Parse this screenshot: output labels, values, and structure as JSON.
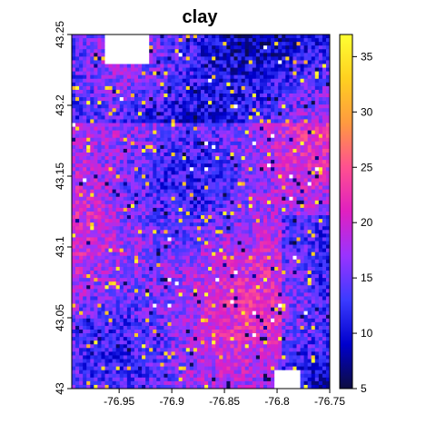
{
  "title": "clay",
  "map": {
    "extent": {
      "x_min": -76.995,
      "x_max": -76.75,
      "y_min": 43.0,
      "y_max": 43.25
    },
    "x_ticks": [
      -76.95,
      -76.9,
      -76.85,
      -76.8,
      -76.75
    ],
    "x_tick_labels": [
      "-76.95",
      "-76.9",
      "-76.85",
      "-76.8",
      "-76.75"
    ],
    "y_ticks": [
      43.0,
      43.05,
      43.1,
      43.15,
      43.2,
      43.25
    ],
    "y_tick_labels": [
      "43",
      "43.05",
      "43.1",
      "43.15",
      "43.2",
      "43.25"
    ],
    "grid_cols": 70,
    "grid_rows": 96,
    "nodata_color": "#ffffff"
  },
  "legend": {
    "min": 5,
    "max": 37,
    "ticks": [
      5,
      10,
      15,
      20,
      25,
      30,
      35
    ],
    "tick_labels": [
      "5",
      "10",
      "15",
      "20",
      "25",
      "30",
      "35"
    ],
    "colors": [
      "#0d0d40",
      "#0000cc",
      "#3b3bff",
      "#9933ff",
      "#e020c0",
      "#ff5090",
      "#ff9a40",
      "#ffd020",
      "#ffff33"
    ]
  }
}
